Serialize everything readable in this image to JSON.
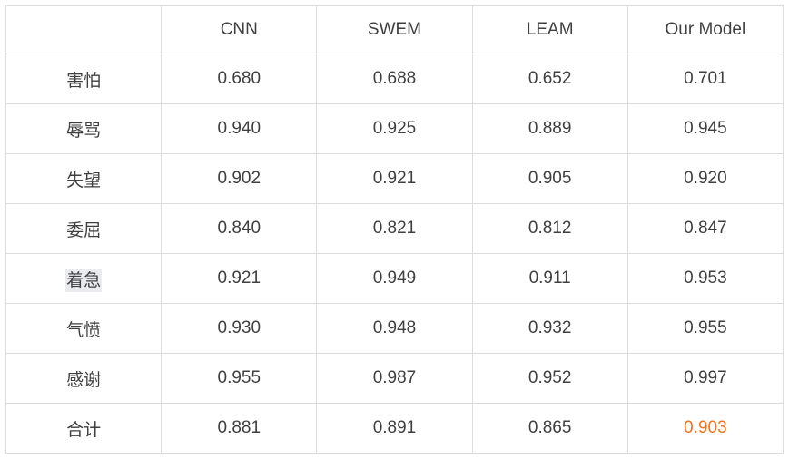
{
  "table": {
    "columns": [
      "",
      "CNN",
      "SWEM",
      "LEAM",
      "Our Model"
    ],
    "rows": [
      {
        "label": "害怕",
        "values": [
          "0.680",
          "0.688",
          "0.652",
          "0.701"
        ]
      },
      {
        "label": "辱骂",
        "values": [
          "0.940",
          "0.925",
          "0.889",
          "0.945"
        ]
      },
      {
        "label": "失望",
        "values": [
          "0.902",
          "0.921",
          "0.905",
          "0.920"
        ]
      },
      {
        "label": "委屈",
        "values": [
          "0.840",
          "0.821",
          "0.812",
          "0.847"
        ]
      },
      {
        "label": "着急",
        "values": [
          "0.921",
          "0.949",
          "0.911",
          "0.953"
        ]
      },
      {
        "label": "气愤",
        "values": [
          "0.930",
          "0.948",
          "0.932",
          "0.955"
        ]
      },
      {
        "label": "感谢",
        "values": [
          "0.955",
          "0.987",
          "0.952",
          "0.997"
        ]
      },
      {
        "label": "合计",
        "values": [
          "0.881",
          "0.891",
          "0.865",
          "0.903"
        ]
      }
    ]
  },
  "chart_data": {
    "type": "table",
    "columns": [
      "",
      "CNN",
      "SWEM",
      "LEAM",
      "Our Model"
    ],
    "categories": [
      "害怕",
      "辱骂",
      "失望",
      "委屈",
      "着急",
      "气愤",
      "感谢",
      "合计"
    ],
    "series": [
      {
        "name": "CNN",
        "values": [
          0.68,
          0.94,
          0.902,
          0.84,
          0.921,
          0.93,
          0.955,
          0.881
        ]
      },
      {
        "name": "SWEM",
        "values": [
          0.688,
          0.925,
          0.921,
          0.821,
          0.949,
          0.948,
          0.987,
          0.891
        ]
      },
      {
        "name": "LEAM",
        "values": [
          0.652,
          0.889,
          0.905,
          0.812,
          0.911,
          0.932,
          0.952,
          0.865
        ]
      },
      {
        "name": "Our Model",
        "values": [
          0.701,
          0.945,
          0.92,
          0.847,
          0.953,
          0.955,
          0.997,
          0.903
        ]
      }
    ],
    "highlighted_cell": {
      "row": "合计",
      "column": "Our Model",
      "value": 0.903,
      "color": "#f7721b"
    },
    "selected_text": "着急"
  },
  "colors": {
    "accent_orange": "#f7721b",
    "text": "#3f3f3f",
    "border": "#dcdcdc",
    "selection_highlight": "#e9ebee"
  }
}
